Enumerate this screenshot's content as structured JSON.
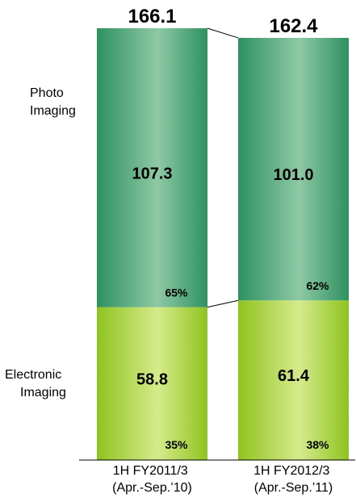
{
  "chart_data": {
    "type": "bar",
    "stacked": true,
    "categories": [
      "1H FY2011/3 (Apr.-Sep.'10)",
      "1H FY2012/3 (Apr.-Sep.'11)"
    ],
    "category_lines": [
      [
        "1H FY2011/3",
        "(Apr.-Sep.’10)"
      ],
      [
        "1H FY2012/3",
        "(Apr.-Sep.’11)"
      ]
    ],
    "series": [
      {
        "name": "Electronic Imaging",
        "label_lines": [
          "Electronic",
          "Imaging"
        ],
        "values": [
          58.8,
          61.4
        ],
        "percents": [
          "35%",
          "38%"
        ]
      },
      {
        "name": "Photo Imaging",
        "label_lines": [
          "Photo",
          "Imaging"
        ],
        "values": [
          107.3,
          101.0
        ],
        "percents": [
          "65%",
          "62%"
        ]
      }
    ],
    "totals": [
      166.1,
      162.4
    ],
    "value_labels": {
      "electronic": [
        "58.8",
        "61.4"
      ],
      "photo": [
        "107.3",
        "101.0"
      ],
      "totals": [
        "166.1",
        "162.4"
      ]
    },
    "colors": {
      "photo_dark": "#2e9160",
      "photo_light": "#8ec9a4",
      "electronic_dark": "#8fc31f",
      "electronic_light": "#d6eb8c"
    },
    "ylim": [
      0,
      166.1
    ],
    "grid": false,
    "legend": "left"
  }
}
